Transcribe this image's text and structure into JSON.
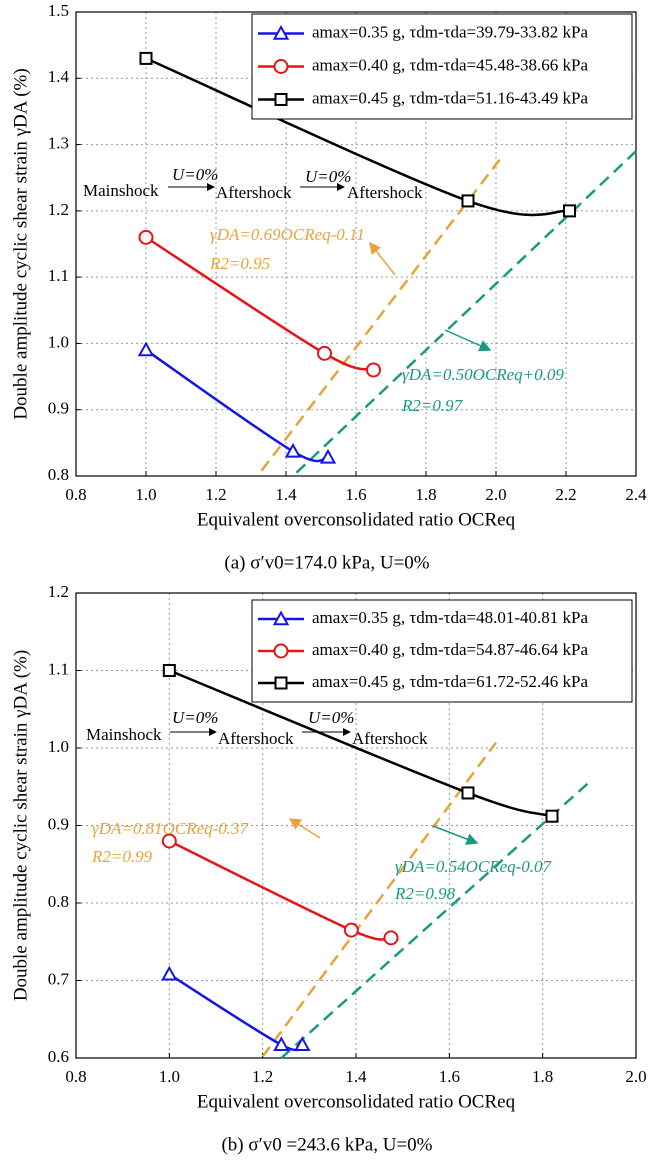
{
  "chart_data": [
    {
      "type": "line",
      "caption": "(a)  σ′v0=174.0 kPa, U=0%",
      "x_label": "Equivalent overconsolidated ratio OCReq",
      "y_label": "Double amplitude cyclic shear strain γDA (%)",
      "xlim": [
        0.8,
        2.4
      ],
      "xticks": [
        0.8,
        {
          "value": 1,
          "label": "1.0"
        },
        1.2,
        1.4,
        1.6,
        1.8,
        {
          "value": 2,
          "label": "2.0"
        },
        2.2,
        2.4
      ],
      "ylim": [
        0.8,
        1.5
      ],
      "yticks": [
        0.8,
        0.9,
        {
          "value": 1,
          "label": "1.0"
        },
        1.1,
        1.2,
        1.3,
        1.4,
        1.5
      ],
      "grid": true,
      "legend": "upper right",
      "series": [
        {
          "name": "amax=0.35 g, τdm-τda=39.79-33.82 kPa",
          "color": "#1414e6",
          "marker": "triangle",
          "x": [
            1.0,
            1.42,
            1.52
          ],
          "values": [
            0.99,
            0.837,
            0.828
          ]
        },
        {
          "name": "amax=0.40 g, τdm-τda=45.48-38.66 kPa",
          "color": "#e61414",
          "marker": "circle",
          "x": [
            1.0,
            1.51,
            1.65
          ],
          "values": [
            1.16,
            0.985,
            0.96
          ]
        },
        {
          "name": "amax=0.45 g, τdm-τda=51.16-43.49 kPa",
          "color": "#000000",
          "marker": "square",
          "x": [
            1.0,
            1.92,
            2.21
          ],
          "values": [
            1.43,
            1.215,
            1.2
          ]
        }
      ],
      "fit_lines": [
        {
          "color": "#e8a33c",
          "x": [
            1.33,
            2.01
          ],
          "values": [
            0.808,
            1.277
          ]
        },
        {
          "color": "#1a9a80",
          "x": [
            1.43,
            2.4
          ],
          "values": [
            0.805,
            1.29
          ]
        }
      ],
      "annotations": [
        "Mainshock",
        "U=0%",
        "Aftershock",
        "U=0%",
        "Aftershock",
        "γDA=0.69OCReq-0.11",
        "R2=0.95",
        "γDA=0.50OCReq+0.09",
        "R2=0.97"
      ]
    },
    {
      "type": "line",
      "caption": "(b)  σ′v0 =243.6 kPa, U=0%",
      "x_label": "Equivalent overconsolidated ratio OCReq",
      "y_label": "Double amplitude cyclic shear strain γDA (%)",
      "xlim": [
        0.8,
        2.0
      ],
      "xticks": [
        0.8,
        {
          "value": 1,
          "label": "1.0"
        },
        1.2,
        1.4,
        1.6,
        1.8,
        {
          "value": 2,
          "label": "2.0"
        }
      ],
      "ylim": [
        0.6,
        1.2
      ],
      "yticks": [
        0.6,
        0.7,
        0.8,
        0.9,
        {
          "value": 1,
          "label": "1.0"
        },
        1.1,
        1.2
      ],
      "grid": true,
      "legend": "upper right",
      "series": [
        {
          "name": "amax=0.35 g, τdm-τda=48.01-40.81 kPa",
          "color": "#1414e6",
          "marker": "triangle",
          "x": [
            1.0,
            1.24,
            1.285
          ],
          "values": [
            0.708,
            0.617,
            0.617
          ]
        },
        {
          "name": "amax=0.40 g, τdm-τda=54.87-46.64 kPa",
          "color": "#e61414",
          "marker": "circle",
          "x": [
            1.0,
            1.39,
            1.475
          ],
          "values": [
            0.88,
            0.765,
            0.755
          ]
        },
        {
          "name": "amax=0.45 g, τdm-τda=61.72-52.46 kPa",
          "color": "#000000",
          "marker": "square",
          "x": [
            1.0,
            1.64,
            1.82
          ],
          "values": [
            1.1,
            0.942,
            0.912
          ]
        }
      ],
      "fit_lines": [
        {
          "color": "#e8a33c",
          "x": [
            1.2,
            1.7
          ],
          "values": [
            0.602,
            1.007
          ]
        },
        {
          "color": "#1a9a80",
          "x": [
            1.24,
            1.9
          ],
          "values": [
            0.6,
            0.956
          ]
        }
      ],
      "annotations": [
        "Mainshock",
        "U=0%",
        "Aftershock",
        "U=0%",
        "Aftershock",
        "γDA=0.81OCReq-0.37",
        "R2=0.99",
        "γDA=0.54OCReq-0.07",
        "R2=0.98"
      ]
    }
  ]
}
